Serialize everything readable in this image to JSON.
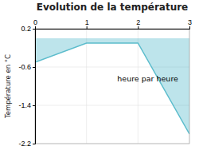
{
  "chart_data": {
    "type": "area",
    "title": "Evolution de la température",
    "ylabel": "Température en °C",
    "annotations": [
      "heure par heure"
    ],
    "x": [
      0,
      1,
      2,
      3
    ],
    "values": [
      -0.5,
      -0.1,
      -0.1,
      -2.0
    ],
    "color": "#5bbccc",
    "xlim": [
      0,
      3
    ],
    "ylim": [
      -2.2,
      0.2
    ],
    "xticks": [
      0,
      1,
      2,
      3
    ],
    "yticks": [
      0.2,
      -0.6,
      -1.4,
      -2.2
    ],
    "grid": true
  }
}
